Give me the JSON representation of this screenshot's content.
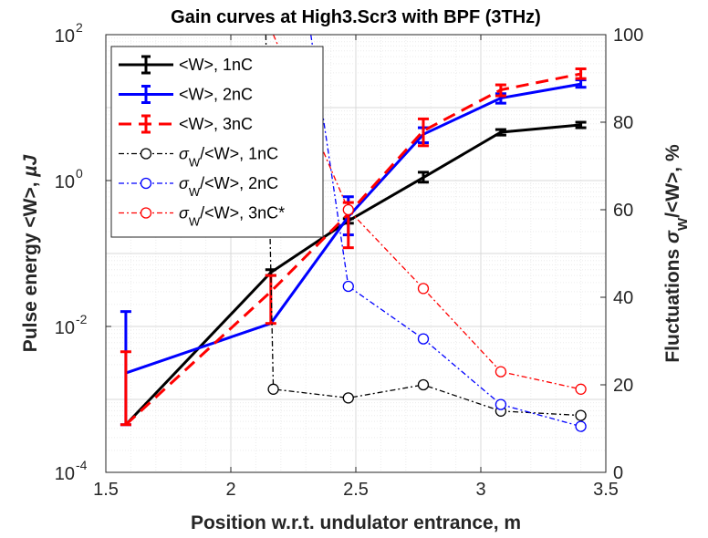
{
  "chart_data": {
    "type": "line",
    "title": "Gain curves at High3.Scr3 with BPF (3THz)",
    "xlabel": "Position w.r.t. undulator entrance, m",
    "ylabel_left_text": "Pulse energy <W>, ",
    "ylabel_left_unit": "µJ",
    "ylabel_right_prefix": "Fluctuations ",
    "ylabel_right_sub": "W",
    "ylabel_right_suffix": "/<W>, %",
    "xlim": [
      1.5,
      3.5
    ],
    "ylim_left": [
      0.0001,
      100
    ],
    "yscale_left": "log",
    "ylim_right": [
      0,
      100
    ],
    "yscale_right": "linear",
    "grid": true,
    "legend_position": "top-left",
    "x_ticks": [
      "1.5",
      "2",
      "2.5",
      "3",
      "3.5"
    ],
    "y_left_ticks": [
      {
        "base": "10",
        "exp": "-4"
      },
      {
        "base": "10",
        "exp": "-2"
      },
      {
        "base": "10",
        "exp": "0"
      },
      {
        "base": "10",
        "exp": "2"
      }
    ],
    "y_right_ticks": [
      "0",
      "20",
      "40",
      "60",
      "80",
      "100"
    ],
    "series": [
      {
        "name": "<W>, 1nC",
        "axis": "left",
        "color": "#000000",
        "style": "solid",
        "x": [
          1.58,
          2.16,
          2.47,
          2.77,
          3.08,
          3.4
        ],
        "y": [
          0.00045,
          0.055,
          0.28,
          1.1,
          4.6,
          5.8
        ],
        "err_low": [
          0.00045,
          0.05,
          0.26,
          0.95,
          4.2,
          5.3
        ],
        "err_high": [
          0.00045,
          0.06,
          0.3,
          1.3,
          5.0,
          6.3
        ]
      },
      {
        "name": "<W>, 2nC",
        "axis": "left",
        "color": "#0000ff",
        "style": "solid",
        "x": [
          1.58,
          2.16,
          2.47,
          2.77,
          3.08,
          3.4
        ],
        "y": [
          0.0023,
          0.011,
          0.32,
          4.3,
          13.5,
          21
        ],
        "err_low": [
          0.00045,
          0.011,
          0.18,
          3.3,
          11.5,
          19
        ],
        "err_high": [
          0.016,
          0.011,
          0.6,
          5.3,
          15.5,
          24
        ]
      },
      {
        "name": "<W>, 3nC",
        "axis": "left",
        "color": "#ff0000",
        "style": "dashed",
        "x": [
          1.58,
          2.16,
          2.47,
          2.77,
          3.08,
          3.4
        ],
        "y": [
          0.00045,
          0.03,
          0.35,
          4.8,
          17.5,
          29
        ],
        "err_low": [
          0.00045,
          0.011,
          0.12,
          3.0,
          14.5,
          25
        ],
        "err_high": [
          0.0045,
          0.05,
          0.5,
          7.0,
          20.5,
          34
        ]
      },
      {
        "name": "1nC",
        "axis": "right",
        "color": "#000000",
        "style": "dashdot",
        "legend_prefix": "σ",
        "legend_sub": "W",
        "legend_suffix": "/<W>, 1nC",
        "x": [
          2.14,
          2.17,
          2.47,
          2.77,
          3.08,
          3.4
        ],
        "y": [
          100,
          19,
          17,
          20,
          14,
          13
        ]
      },
      {
        "name": "2nC",
        "axis": "right",
        "color": "#0000ff",
        "style": "dashdot",
        "legend_prefix": "σ",
        "legend_sub": "W",
        "legend_suffix": "/<W>, 2nC",
        "x": [
          2.32,
          2.47,
          2.77,
          3.08,
          3.4
        ],
        "y": [
          100,
          42.5,
          30.5,
          15.5,
          10.5
        ]
      },
      {
        "name": "3nC*",
        "axis": "right",
        "color": "#ff0000",
        "style": "dashdot",
        "legend_prefix": "σ",
        "legend_sub": "W",
        "legend_suffix": "/<W>, 3nC*",
        "x": [
          2.17,
          2.47,
          2.77,
          3.08,
          3.4
        ],
        "y": [
          100,
          60,
          42,
          23,
          19
        ]
      }
    ]
  }
}
